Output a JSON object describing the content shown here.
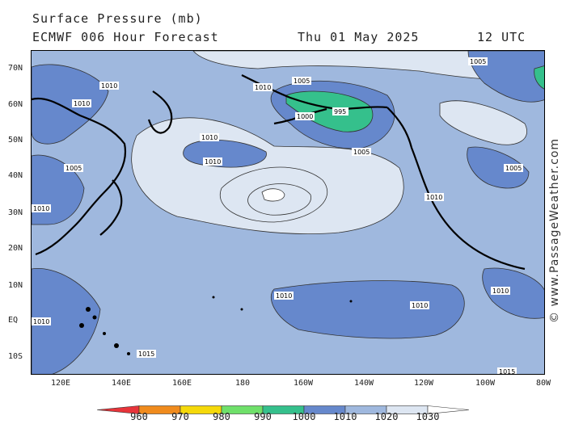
{
  "header": {
    "title": "Surface Pressure (mb)",
    "model": "ECMWF 006 Hour Forecast",
    "date": "Thu 01 May 2025",
    "time": "12 UTC"
  },
  "lat_labels": [
    "70N",
    "60N",
    "50N",
    "40N",
    "30N",
    "20N",
    "10N",
    "EQ",
    "10S"
  ],
  "lon_labels": [
    "120E",
    "140E",
    "160E",
    "180",
    "160W",
    "140W",
    "120W",
    "100W",
    "80W"
  ],
  "credit": "© www.PassageWeather.com",
  "legend": {
    "values": [
      "960",
      "970",
      "980",
      "990",
      "1000",
      "1010",
      "1020",
      "1030"
    ],
    "colors": [
      "#e8343a",
      "#f08b1d",
      "#f5d90a",
      "#6fe06a",
      "#35c08c",
      "#6688cc",
      "#9fb8de",
      "#dde6f2",
      "#ffffff"
    ]
  },
  "colors": {
    "bg_1010_1020": "#9fb8de",
    "low_1000_1010": "#6688cc",
    "high_1020_1030": "#dde6f2",
    "low_990_1000": "#35c08c",
    "land": "#000000"
  },
  "isobar_labels": [
    "1010",
    "1005",
    "1000",
    "995",
    "1015"
  ]
}
